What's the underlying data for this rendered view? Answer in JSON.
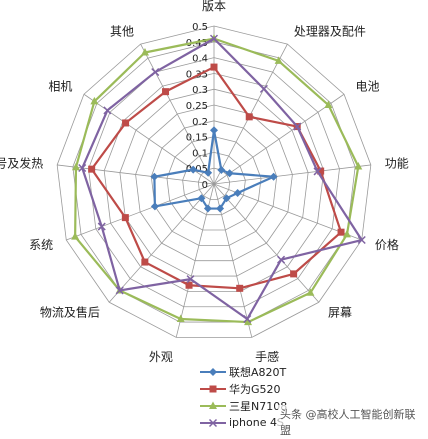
{
  "chart_data": {
    "type": "radar",
    "categories": [
      "版本",
      "处理器及配件",
      "电池",
      "功能",
      "价格",
      "屏幕",
      "手感",
      "外观",
      "物流及售后",
      "系统",
      "信号及发热",
      "相机",
      "其他"
    ],
    "rlim": [
      0,
      0.5
    ],
    "ticks": [
      "0",
      "0.05",
      "0.1",
      "0.15",
      "0.2",
      "0.25",
      "0.3",
      "0.35",
      "0.4",
      "0.45",
      "0.5"
    ],
    "grid": true,
    "legend_position": "bottom",
    "series": [
      {
        "name": "联想A820T",
        "marker": "diamond",
        "color": "#4a7ebb",
        "values": [
          0.17,
          0.05,
          0.06,
          0.19,
          0.08,
          0.06,
          0.08,
          0.08,
          0.06,
          0.2,
          0.19,
          0.08,
          0.04
        ]
      },
      {
        "name": "华为G520",
        "marker": "square",
        "color": "#be4b48",
        "values": [
          0.37,
          0.24,
          0.32,
          0.34,
          0.43,
          0.38,
          0.34,
          0.33,
          0.33,
          0.3,
          0.39,
          0.34,
          0.33
        ]
      },
      {
        "name": "三星N7108",
        "marker": "triangle",
        "color": "#9bbb59",
        "values": [
          0.46,
          0.44,
          0.44,
          0.46,
          0.45,
          0.46,
          0.45,
          0.44,
          0.45,
          0.47,
          0.44,
          0.46,
          0.47
        ]
      },
      {
        "name": "iphone 4S",
        "marker": "x",
        "color": "#7f63a2",
        "values": [
          0.46,
          0.34,
          0.32,
          0.33,
          0.5,
          0.32,
          0.44,
          0.31,
          0.45,
          0.38,
          0.42,
          0.41,
          0.4
        ]
      }
    ]
  },
  "watermark": "头条 @高校人工智能创新联盟"
}
